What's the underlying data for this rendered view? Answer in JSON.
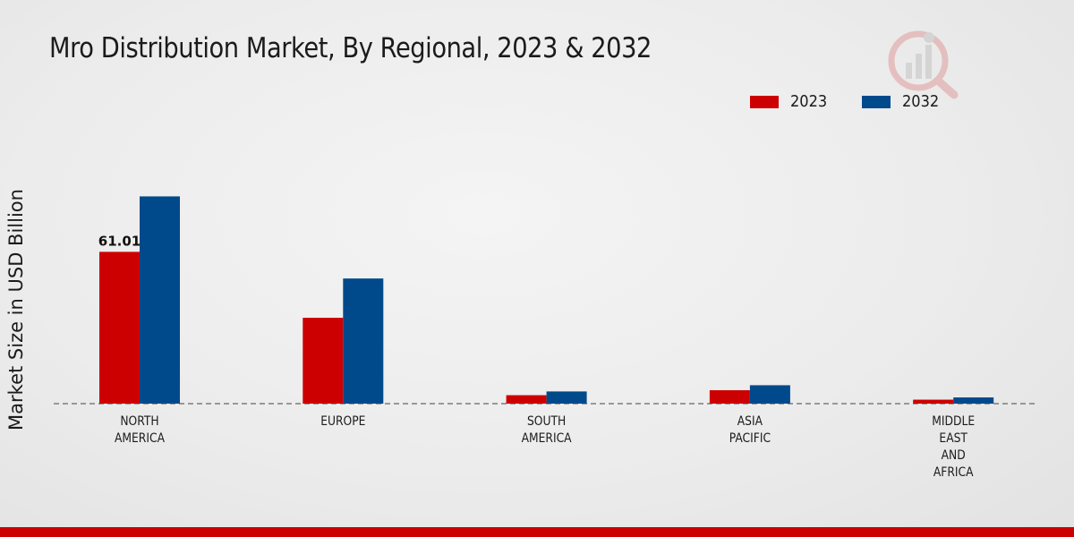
{
  "chart_data": {
    "type": "bar",
    "title": "Mro Distribution Market, By Regional, 2023 & 2032",
    "xlabel": "",
    "ylabel": "Market Size in USD Billion",
    "categories": [
      [
        "NORTH",
        "AMERICA"
      ],
      [
        "EUROPE"
      ],
      [
        "SOUTH",
        "AMERICA"
      ],
      [
        "ASIA",
        "PACIFIC"
      ],
      [
        "MIDDLE",
        "EAST",
        "AND",
        "AFRICA"
      ]
    ],
    "series": [
      {
        "name": "2023",
        "color": "#cc0000",
        "values": [
          61.01,
          34.5,
          3.4,
          5.4,
          1.6
        ]
      },
      {
        "name": "2032",
        "color": "#004a8c",
        "values": [
          83.3,
          50.3,
          4.9,
          7.4,
          2.5
        ]
      }
    ],
    "data_labels": [
      {
        "series": 0,
        "index": 0,
        "text": "61.01"
      }
    ],
    "ylim": [
      0,
      100
    ],
    "grid": false,
    "legend": "top-right"
  },
  "footer": {
    "accent_color": "#cc0000"
  },
  "logo": {
    "icon": "market-research-logo-icon"
  }
}
